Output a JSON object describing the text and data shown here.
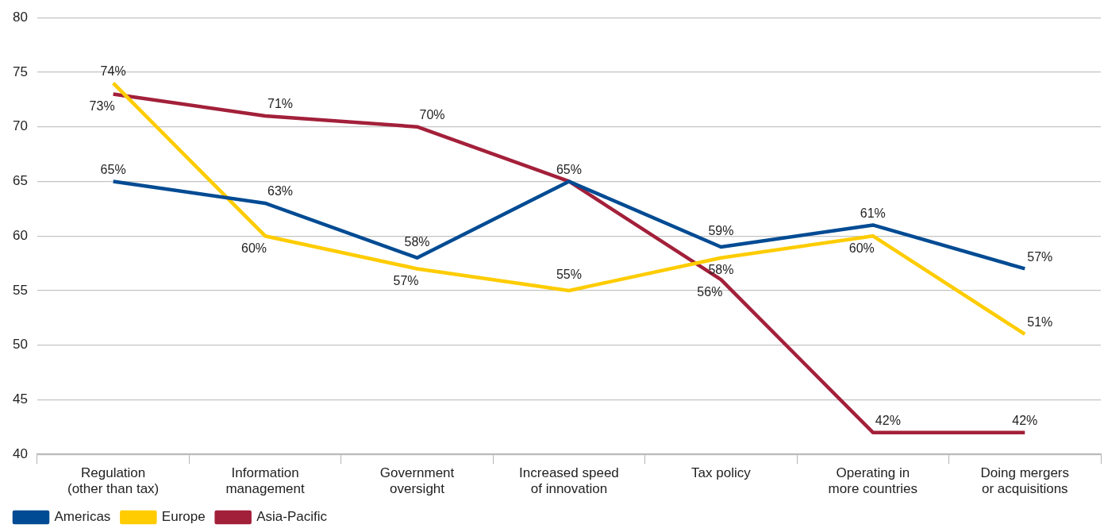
{
  "chart_data": {
    "type": "line",
    "categories": [
      "Regulation (other than tax)",
      "Information management",
      "Government oversight",
      "Increased speed of innovation",
      "Tax policy",
      "Operating in more countries",
      "Doing mergers or acquisitions"
    ],
    "series": [
      {
        "name": "Americas",
        "color": "#004b93",
        "values": [
          65,
          63,
          58,
          65,
          59,
          61,
          57
        ],
        "value_labels": [
          "65%",
          "63%",
          "58%",
          "65%",
          "59%",
          "61%",
          "57%"
        ]
      },
      {
        "name": "Europe",
        "color": "#fecc00",
        "values": [
          74,
          60,
          57,
          55,
          58,
          60,
          51
        ],
        "value_labels": [
          "74%",
          "60%",
          "57%",
          "55%",
          "58%",
          "60%",
          "51%"
        ]
      },
      {
        "name": "Asia-Pacific",
        "color": "#a3203a",
        "values": [
          73,
          71,
          70,
          65,
          56,
          42,
          42
        ],
        "value_labels": [
          "73%",
          "71%",
          "70%",
          null,
          "56%",
          "42%",
          "42%"
        ]
      }
    ],
    "ylim": [
      40,
      80
    ],
    "yticks": [
      40,
      45,
      50,
      55,
      60,
      65,
      70,
      75,
      80
    ],
    "grid": "y",
    "legend": "bottom left",
    "marker": "none",
    "line_style": "solid"
  }
}
